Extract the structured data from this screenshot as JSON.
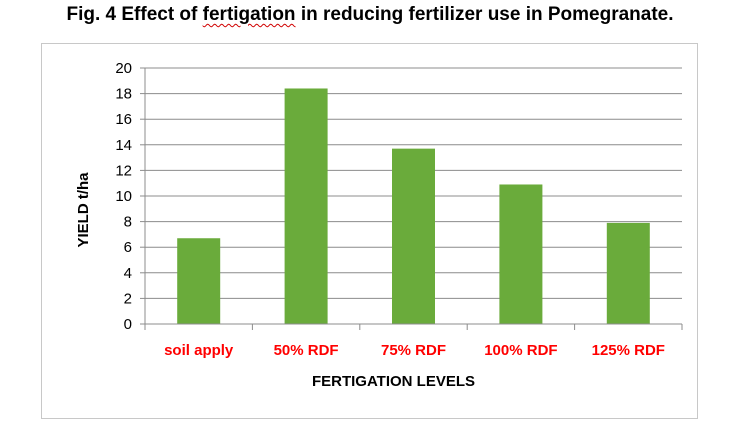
{
  "figure": {
    "title_before": "Fig. 4 Effect of ",
    "title_flagged_word": "fertigation",
    "title_after": " in reducing fertilizer use in Pomegranate."
  },
  "chart_data": {
    "type": "bar",
    "categories": [
      "soil apply",
      "50% RDF",
      "75% RDF",
      "100% RDF",
      "125% RDF"
    ],
    "values": [
      6.7,
      18.4,
      13.7,
      10.9,
      7.9
    ],
    "title": "Fig. 4 Effect of fertigation in reducing fertilizer use in Pomegranate.",
    "xlabel": "FERTIGATION LEVELS",
    "ylabel": "YIELD  t/ha",
    "ylim": [
      0,
      20
    ],
    "yticks": [
      0,
      2,
      4,
      6,
      8,
      10,
      12,
      14,
      16,
      18,
      20
    ],
    "grid": true,
    "legend": "none",
    "bar_color": "#6aab3b",
    "category_label_color": "#ff0000"
  }
}
